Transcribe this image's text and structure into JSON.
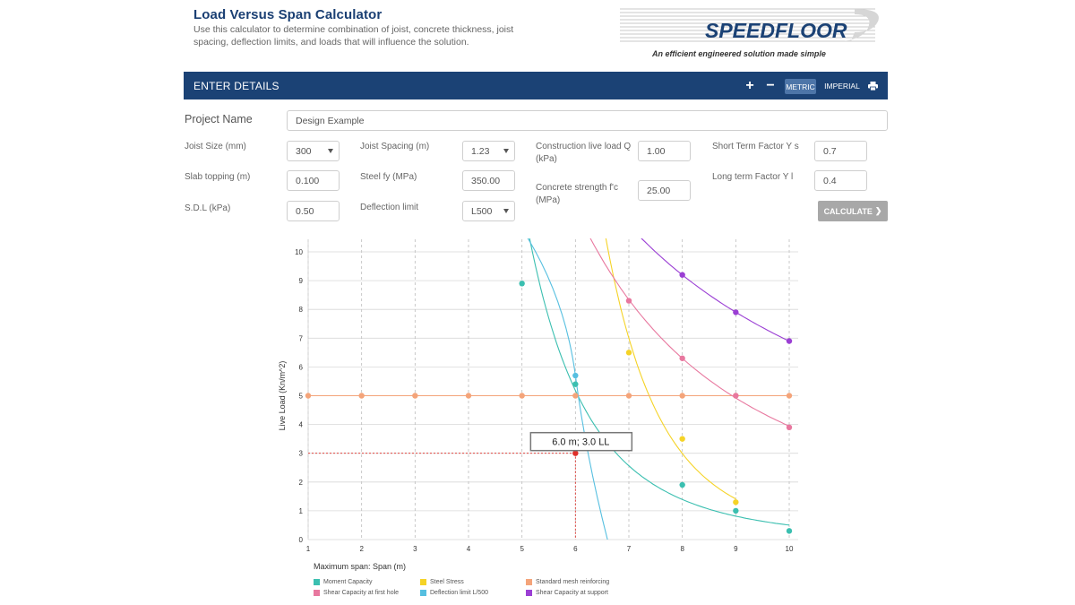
{
  "header": {
    "title": "Load Versus Span Calculator",
    "description": "Use this calculator to determine combination of joist, concrete thickness, joist spacing, deflection limits, and loads that will influence the solution."
  },
  "logo": {
    "brand": "SPEEDFLOOR",
    "tagline": "An efficient engineered solution made simple"
  },
  "panel": {
    "title": "ENTER DETAILS",
    "plus_label": "+",
    "minus_label": "−",
    "metric_label": "METRIC",
    "imperial_label": "IMPERIAL",
    "print_icon": "print-icon"
  },
  "form": {
    "project_name_label": "Project Name",
    "project_name_value": "Design Example",
    "joist_size_label": "Joist Size (mm)",
    "joist_size_value": "300",
    "slab_topping_label": "Slab topping (m)",
    "slab_topping_value": "0.100",
    "sdl_label": "S.D.L (kPa)",
    "sdl_value": "0.50",
    "joist_spacing_label": "Joist Spacing (m)",
    "joist_spacing_value": "1.23",
    "steel_fy_label": "Steel fy (MPa)",
    "steel_fy_value": "350.00",
    "deflection_label": "Deflection limit",
    "deflection_value": "L500",
    "construction_live_label": "Construction live load Q (kPa)",
    "construction_live_value": "1.00",
    "concrete_strength_label": "Concrete strength f'c (MPa)",
    "concrete_strength_value": "25.00",
    "short_term_label": "Short Term Factor Y s",
    "short_term_value": "0.7",
    "long_term_label": "Long term Factor Y l",
    "long_term_value": "0.4",
    "calculate_label": "CALCULATE"
  },
  "chart_data": {
    "type": "line",
    "xlabel": "Maximum span: Span (m)",
    "ylabel": "Live Load (Kn/m^2)",
    "xlim": [
      1,
      10
    ],
    "ylim": [
      0,
      10
    ],
    "x_ticks": [
      1,
      2,
      3,
      4,
      5,
      6,
      7,
      8,
      9,
      10
    ],
    "y_ticks": [
      0,
      1,
      2,
      3,
      4,
      5,
      6,
      7,
      8,
      9,
      10
    ],
    "grid": true,
    "legend_placement": "bottom",
    "tooltip": {
      "text": "6.0 m; 3.0 LL",
      "x": 6,
      "y": 3
    },
    "series": [
      {
        "name": "Moment Capacity",
        "color": "#3bbfb0",
        "x": [
          5,
          6,
          7,
          8,
          9,
          10
        ],
        "y": [
          8.9,
          5.4,
          3.3,
          1.9,
          1.0,
          0.3
        ]
      },
      {
        "name": "Steel Stress",
        "color": "#f5d327",
        "x": [
          7,
          8,
          9
        ],
        "y": [
          6.5,
          3.5,
          1.3
        ]
      },
      {
        "name": "Standard mesh reinforcing",
        "color": "#f4a47a",
        "x": [
          1,
          2,
          3,
          4,
          5,
          6,
          7,
          8,
          9,
          10
        ],
        "y": [
          5,
          5,
          5,
          5,
          5,
          5,
          5,
          5,
          5,
          5
        ]
      },
      {
        "name": "Shear Capacity at first hole",
        "color": "#e8789f",
        "x": [
          7,
          8,
          9,
          10
        ],
        "y": [
          8.3,
          6.3,
          5.0,
          3.9
        ]
      },
      {
        "name": "Deflection limit L/500",
        "color": "#56bfe0",
        "x": [
          6
        ],
        "y": [
          5.7
        ]
      },
      {
        "name": "Shear Capacity at support",
        "color": "#9b3fd4",
        "x": [
          8,
          9,
          10
        ],
        "y": [
          9.2,
          7.9,
          6.9
        ]
      }
    ]
  }
}
